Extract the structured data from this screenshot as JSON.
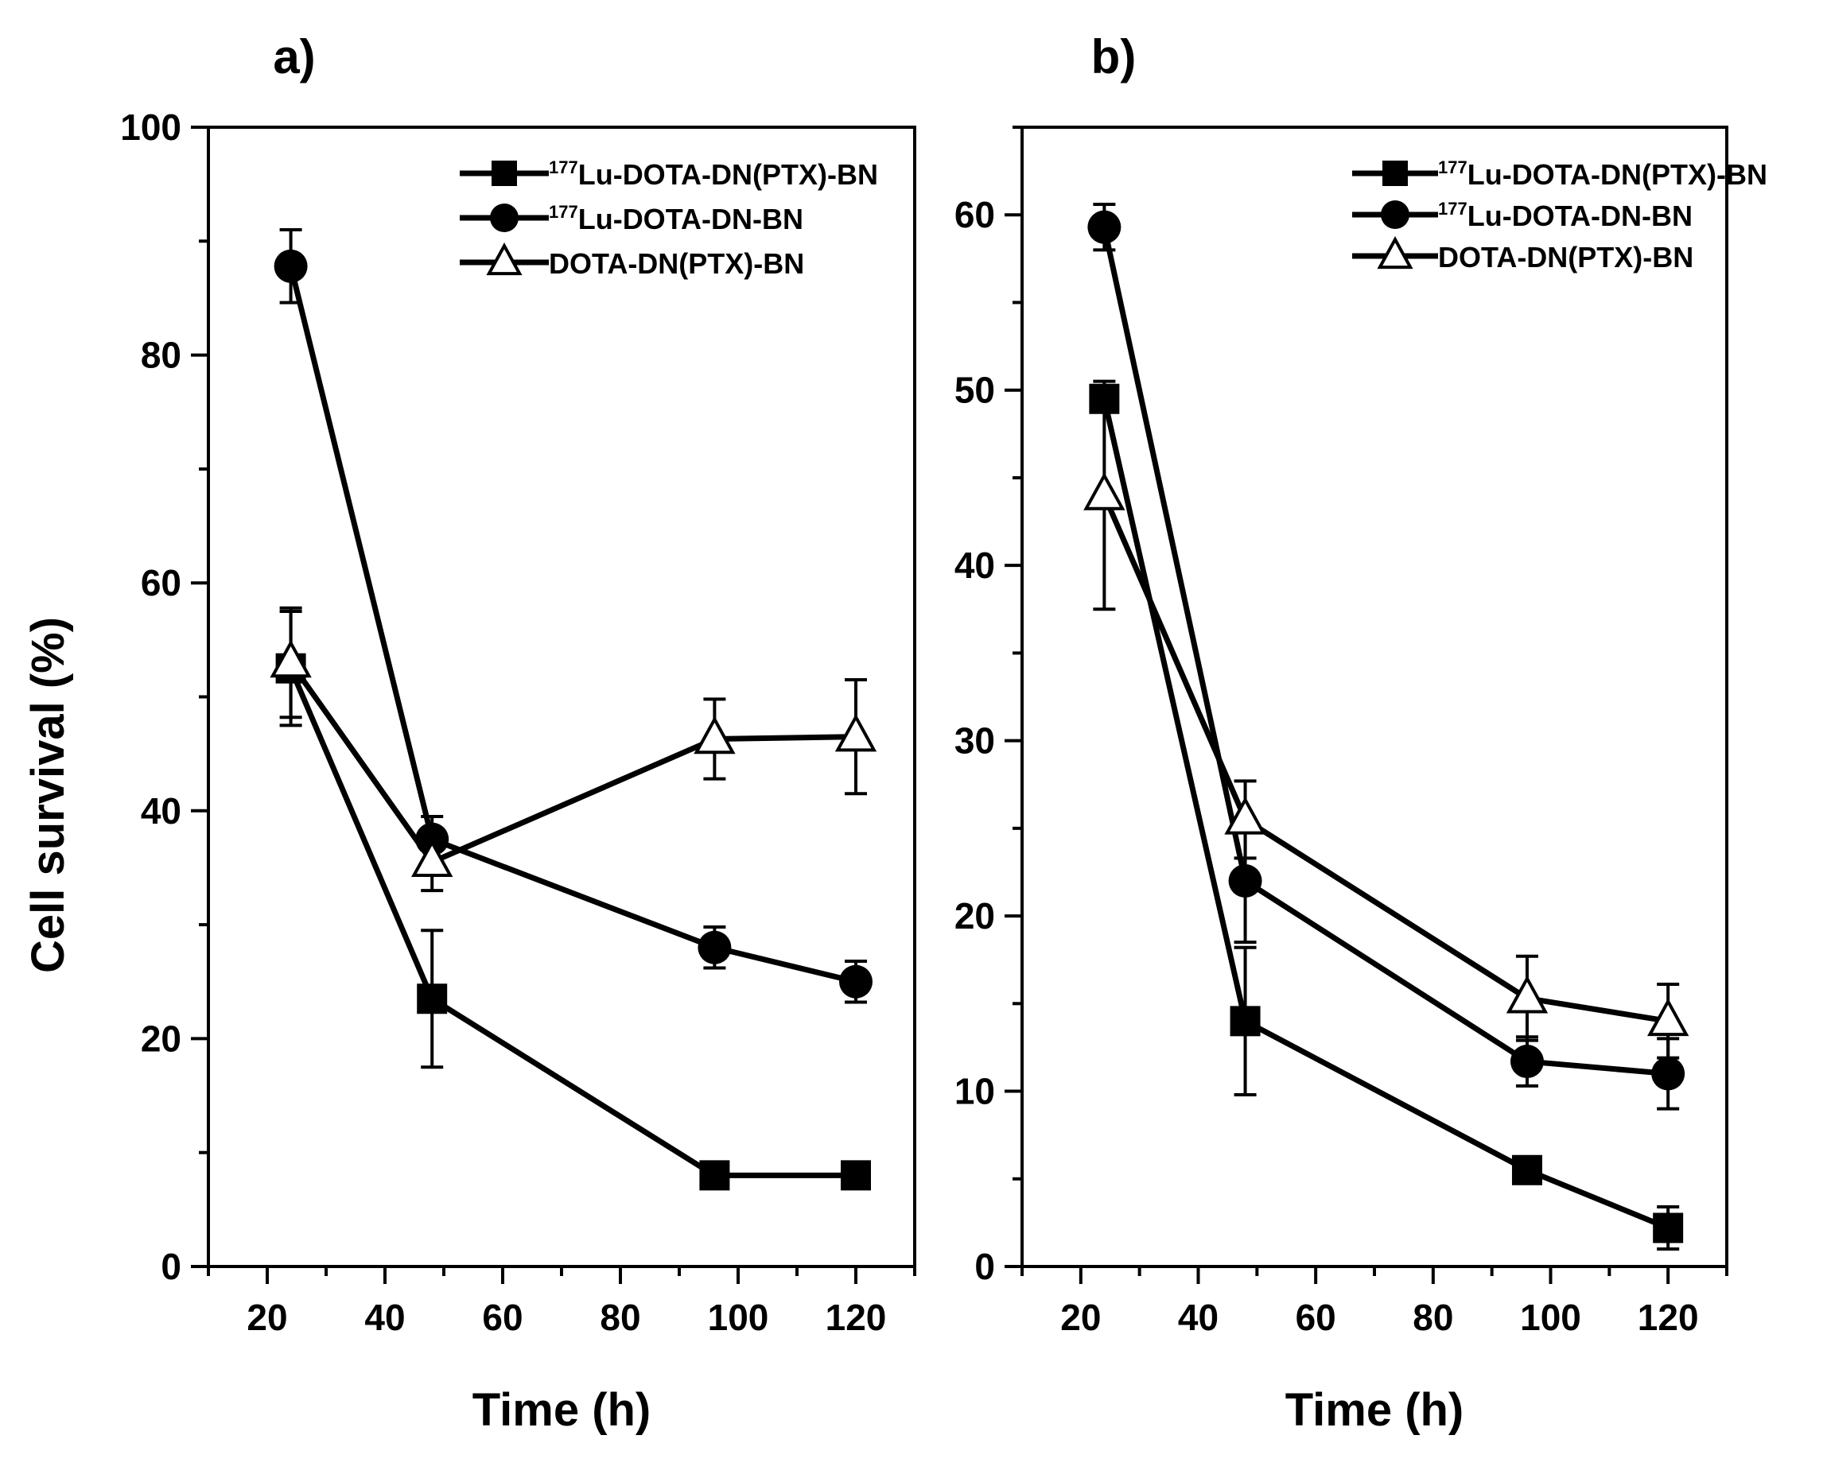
{
  "figure": {
    "ylabel": "Cell survival (%)"
  },
  "chart_data": [
    {
      "type": "line",
      "panel_label": "a)",
      "xlabel": "Time (h)",
      "ylabel": "Cell survival (%)",
      "xlim": [
        10,
        130
      ],
      "ylim": [
        0,
        100
      ],
      "xticks": [
        20,
        40,
        60,
        80,
        100,
        120
      ],
      "xtick_labels": [
        "20",
        "40",
        "60",
        "80",
        "100",
        "120"
      ],
      "yticks": [
        0,
        20,
        40,
        60,
        80,
        100
      ],
      "ytick_labels": [
        "0",
        "20",
        "40",
        "60",
        "80",
        "100"
      ],
      "grid": false,
      "legend_position": "top-right",
      "series": [
        {
          "name": "177Lu-DOTA-DN(PTX)-BN",
          "legend_sup": "177",
          "legend_text": "Lu-DOTA-DN(PTX)-BN",
          "marker": "square",
          "x": [
            24,
            48,
            96,
            120
          ],
          "y": [
            52.5,
            23.5,
            8,
            8
          ],
          "err": [
            5,
            6,
            0,
            0
          ]
        },
        {
          "name": "177Lu-DOTA-DN-BN",
          "legend_sup": "177",
          "legend_text": "Lu-DOTA-DN-BN",
          "marker": "circle",
          "x": [
            24,
            48,
            96,
            120
          ],
          "y": [
            87.8,
            37.5,
            28,
            25
          ],
          "err": [
            3.2,
            2,
            1.8,
            1.8
          ]
        },
        {
          "name": "DOTA-DN(PTX)-BN",
          "legend_sup": "",
          "legend_text": "DOTA-DN(PTX)-BN",
          "marker": "triangle",
          "x": [
            24,
            48,
            96,
            120
          ],
          "y": [
            53,
            35.5,
            46.3,
            46.5
          ],
          "err": [
            4.8,
            2.5,
            3.5,
            5
          ]
        }
      ]
    },
    {
      "type": "line",
      "panel_label": "b)",
      "xlabel": "Time (h)",
      "ylabel": "",
      "xlim": [
        10,
        130
      ],
      "ylim": [
        0,
        65
      ],
      "xticks": [
        20,
        40,
        60,
        80,
        100,
        120
      ],
      "xtick_labels": [
        "20",
        "40",
        "60",
        "80",
        "100",
        "120"
      ],
      "yticks": [
        0,
        10,
        20,
        30,
        40,
        50,
        60
      ],
      "ytick_labels": [
        "0",
        "10",
        "20",
        "30",
        "40",
        "50",
        "60"
      ],
      "grid": false,
      "legend_position": "top-right",
      "series": [
        {
          "name": "177Lu-DOTA-DN(PTX)-BN",
          "legend_sup": "177",
          "legend_text": "Lu-DOTA-DN(PTX)-BN",
          "marker": "square",
          "x": [
            24,
            48,
            96,
            120
          ],
          "y": [
            49.5,
            14,
            5.5,
            2.2
          ],
          "err": [
            0,
            4.2,
            0,
            1.2
          ]
        },
        {
          "name": "177Lu-DOTA-DN-BN",
          "legend_sup": "177",
          "legend_text": "Lu-DOTA-DN-BN",
          "marker": "circle",
          "x": [
            24,
            48,
            96,
            120
          ],
          "y": [
            59.3,
            22,
            11.7,
            11
          ],
          "err": [
            1.3,
            3.5,
            1.4,
            2
          ]
        },
        {
          "name": "DOTA-DN(PTX)-BN",
          "legend_sup": "",
          "legend_text": "DOTA-DN(PTX)-BN",
          "marker": "triangle",
          "x": [
            24,
            48,
            96,
            120
          ],
          "y": [
            44,
            25.5,
            15.3,
            14
          ],
          "err": [
            6.5,
            2.2,
            2.4,
            2.1
          ]
        }
      ]
    }
  ]
}
